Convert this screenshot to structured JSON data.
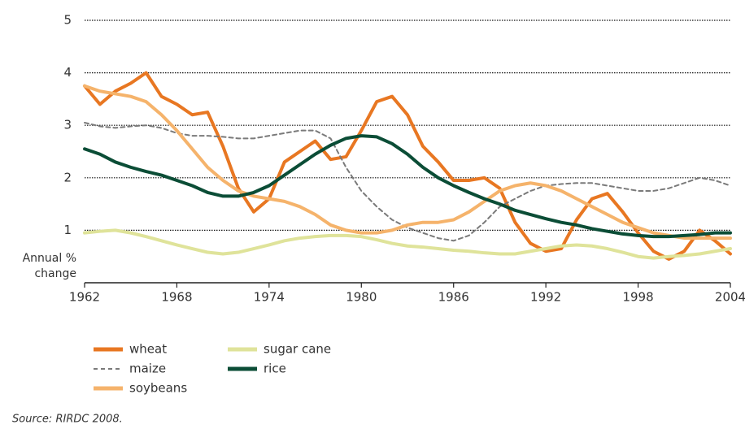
{
  "chart_data": {
    "type": "line",
    "y_label": "Annual % change",
    "source": "Source: RIRDC 2008.",
    "x": [
      1962,
      1963,
      1964,
      1965,
      1966,
      1967,
      1968,
      1969,
      1970,
      1971,
      1972,
      1973,
      1974,
      1975,
      1976,
      1977,
      1978,
      1979,
      1980,
      1981,
      1982,
      1983,
      1984,
      1985,
      1986,
      1987,
      1988,
      1989,
      1990,
      1991,
      1992,
      1993,
      1994,
      1995,
      1996,
      1997,
      1998,
      1999,
      2000,
      2001,
      2002,
      2003,
      2004
    ],
    "xlim": [
      1962,
      2004
    ],
    "xticks": [
      1962,
      1968,
      1974,
      1980,
      1986,
      1992,
      1998,
      2004
    ],
    "ylim": [
      0,
      5
    ],
    "yticks": [
      1,
      2,
      3,
      4,
      5
    ],
    "grid": true,
    "series": [
      {
        "name": "wheat",
        "color": "#e87722",
        "dashed": false,
        "values": [
          3.75,
          3.4,
          3.65,
          3.8,
          4.0,
          3.55,
          3.4,
          3.2,
          3.25,
          2.6,
          1.8,
          1.35,
          1.6,
          2.3,
          2.5,
          2.7,
          2.35,
          2.4,
          2.9,
          3.45,
          3.55,
          3.2,
          2.6,
          2.3,
          1.95,
          1.95,
          2.0,
          1.8,
          1.15,
          0.75,
          0.6,
          0.65,
          1.2,
          1.6,
          1.7,
          1.35,
          0.95,
          0.6,
          0.45,
          0.6,
          1.0,
          0.8,
          0.55
        ]
      },
      {
        "name": "maize",
        "color": "#7a7a7a",
        "dashed": true,
        "values": [
          3.05,
          2.98,
          2.95,
          2.98,
          3.0,
          2.95,
          2.85,
          2.8,
          2.8,
          2.78,
          2.75,
          2.75,
          2.8,
          2.85,
          2.9,
          2.9,
          2.75,
          2.2,
          1.75,
          1.45,
          1.2,
          1.05,
          0.95,
          0.85,
          0.8,
          0.9,
          1.15,
          1.45,
          1.6,
          1.75,
          1.85,
          1.88,
          1.9,
          1.9,
          1.85,
          1.8,
          1.75,
          1.75,
          1.8,
          1.9,
          2.0,
          1.95,
          1.85
        ]
      },
      {
        "name": "soybeans",
        "color": "#f5b36b",
        "dashed": false,
        "values": [
          3.75,
          3.65,
          3.6,
          3.55,
          3.45,
          3.2,
          2.9,
          2.55,
          2.2,
          1.95,
          1.75,
          1.65,
          1.6,
          1.55,
          1.45,
          1.3,
          1.1,
          1.0,
          0.95,
          0.95,
          1.0,
          1.1,
          1.15,
          1.15,
          1.2,
          1.35,
          1.55,
          1.75,
          1.85,
          1.9,
          1.85,
          1.75,
          1.6,
          1.45,
          1.3,
          1.15,
          1.05,
          0.95,
          0.9,
          0.85,
          0.85,
          0.85,
          0.85
        ]
      },
      {
        "name": "sugar cane",
        "color": "#dfe39a",
        "dashed": false,
        "values": [
          0.95,
          0.98,
          1.0,
          0.95,
          0.88,
          0.8,
          0.72,
          0.65,
          0.58,
          0.55,
          0.58,
          0.65,
          0.72,
          0.8,
          0.85,
          0.88,
          0.9,
          0.9,
          0.88,
          0.82,
          0.75,
          0.7,
          0.68,
          0.65,
          0.62,
          0.6,
          0.57,
          0.55,
          0.55,
          0.6,
          0.65,
          0.7,
          0.72,
          0.7,
          0.65,
          0.58,
          0.5,
          0.47,
          0.5,
          0.52,
          0.55,
          0.6,
          0.65
        ]
      },
      {
        "name": "rice",
        "color": "#0b4d36",
        "dashed": false,
        "values": [
          2.55,
          2.45,
          2.3,
          2.2,
          2.12,
          2.05,
          1.95,
          1.85,
          1.72,
          1.65,
          1.65,
          1.72,
          1.85,
          2.05,
          2.25,
          2.45,
          2.62,
          2.75,
          2.8,
          2.78,
          2.65,
          2.45,
          2.2,
          2.0,
          1.85,
          1.72,
          1.6,
          1.5,
          1.38,
          1.3,
          1.22,
          1.15,
          1.1,
          1.03,
          0.98,
          0.93,
          0.9,
          0.88,
          0.88,
          0.9,
          0.92,
          0.95,
          0.95
        ]
      }
    ]
  }
}
